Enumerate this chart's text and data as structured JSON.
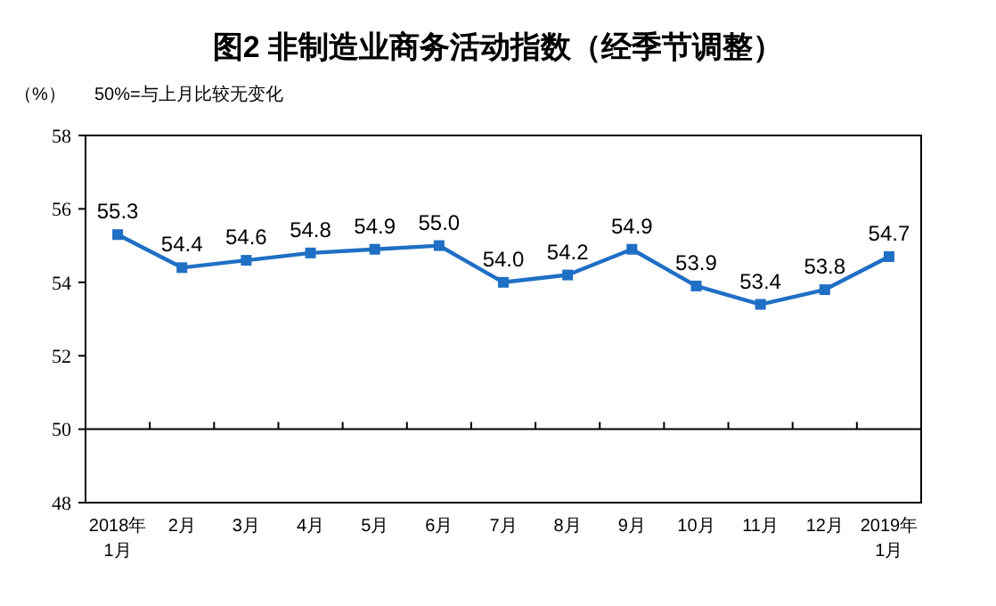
{
  "chart_data": {
    "type": "line",
    "title": "图2  非制造业商务活动指数（经季节调整）",
    "ylabel": "（%）",
    "annotations": [
      "50%=与上月比较无变化"
    ],
    "categories": [
      "2018年\n1月",
      "2月",
      "3月",
      "4月",
      "5月",
      "6月",
      "7月",
      "8月",
      "9月",
      "10月",
      "11月",
      "12月",
      "2019年\n1月"
    ],
    "series": [
      {
        "color": "#1f6fc5",
        "values": [
          55.3,
          54.4,
          54.6,
          54.8,
          54.9,
          55.0,
          54.0,
          54.2,
          54.9,
          53.9,
          53.4,
          53.8,
          54.7
        ],
        "value_labels": [
          "55.3",
          "54.4",
          "54.6",
          "54.8",
          "54.9",
          "55.0",
          "54.0",
          "54.2",
          "54.9",
          "53.9",
          "53.4",
          "53.8",
          "54.7"
        ]
      }
    ],
    "ylim": [
      48,
      58
    ],
    "yticks": [
      48,
      50,
      52,
      54,
      56,
      58
    ],
    "ref_lines": [
      {
        "axis": "y",
        "value": 50,
        "color": "#000000"
      }
    ],
    "marker": "square",
    "line_style": "solid"
  }
}
